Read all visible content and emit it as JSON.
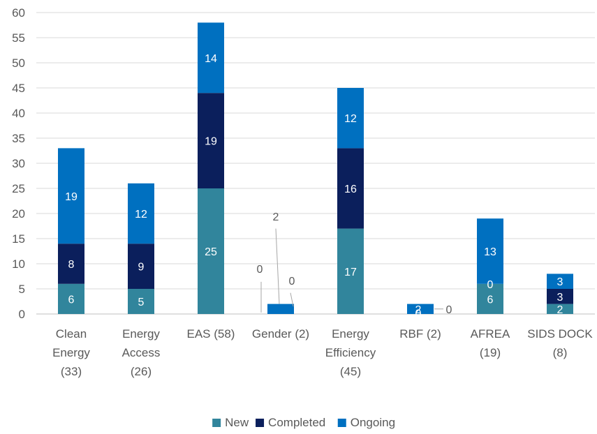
{
  "chart_data": {
    "type": "bar",
    "stacked": true,
    "categories": [
      [
        "Clean",
        "Energy",
        "(33)"
      ],
      [
        "Energy",
        "Access",
        "(26)"
      ],
      [
        "EAS (58)"
      ],
      [
        "Gender (2)"
      ],
      [
        "Energy",
        "Efficiency",
        "(45)"
      ],
      [
        "RBF (2)"
      ],
      [
        "AFREA",
        "(19)"
      ],
      [
        "SIDS DOCK",
        "(8)"
      ]
    ],
    "series": [
      {
        "name": "New",
        "color": "#31859C",
        "values": [
          6,
          5,
          25,
          0,
          17,
          0,
          6,
          2
        ]
      },
      {
        "name": "Completed",
        "color": "#0B1F5C",
        "values": [
          8,
          9,
          19,
          0,
          16,
          0,
          0,
          3
        ]
      },
      {
        "name": "Ongoing",
        "color": "#0070C0",
        "values": [
          19,
          12,
          14,
          2,
          12,
          2,
          13,
          3
        ]
      }
    ],
    "ylim": [
      0,
      60
    ],
    "yticks": [
      0,
      5,
      10,
      15,
      20,
      25,
      30,
      35,
      40,
      45,
      50,
      55,
      60
    ],
    "grid": true,
    "legend": "bottom-center"
  }
}
